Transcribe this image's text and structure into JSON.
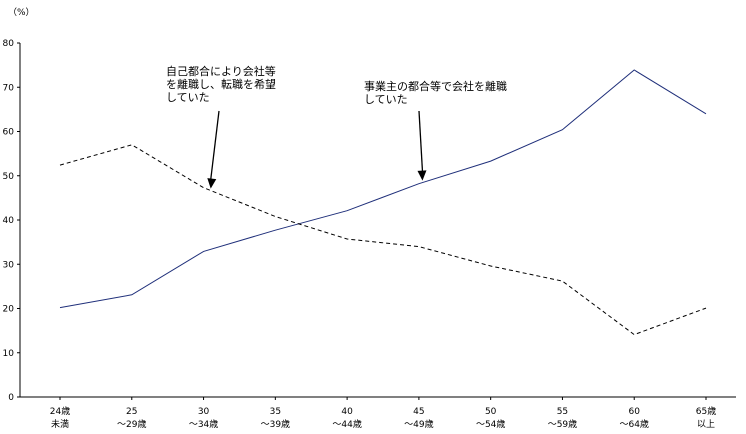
{
  "chart_data": {
    "type": "line",
    "unit_label": "（%）",
    "ylim": [
      0,
      80
    ],
    "yticks": [
      0,
      10,
      20,
      30,
      40,
      50,
      60,
      70,
      80
    ],
    "categories": [
      [
        "24歳",
        "未満"
      ],
      [
        "25",
        "～29歳"
      ],
      [
        "30",
        "～34歳"
      ],
      [
        "35",
        "～39歳"
      ],
      [
        "40",
        "～44歳"
      ],
      [
        "45",
        "～49歳"
      ],
      [
        "50",
        "～54歳"
      ],
      [
        "55",
        "～59歳"
      ],
      [
        "60",
        "～64歳"
      ],
      [
        "65歳",
        "以上"
      ]
    ],
    "series": [
      {
        "key": "company",
        "style": "solid",
        "color": "#1f2f7a",
        "values": [
          20.2,
          23.1,
          32.9,
          37.7,
          42.1,
          48.2,
          53.3,
          60.4,
          73.9,
          64.0
        ]
      },
      {
        "key": "self",
        "style": "dashed",
        "color": "#000000",
        "values": [
          52.4,
          57.0,
          47.3,
          40.8,
          35.7,
          34.0,
          29.6,
          26.2,
          14.1,
          20.1
        ]
      }
    ],
    "annotations": [
      {
        "series": "self",
        "lines": [
          "自己都合により会社等",
          "を離職し、転職を希望",
          "していた"
        ],
        "arrow_at_index": 2.1
      },
      {
        "series": "company",
        "lines": [
          "事業主の都合等で会社を離職",
          "していた"
        ],
        "arrow_at_index": 5.05
      }
    ]
  }
}
